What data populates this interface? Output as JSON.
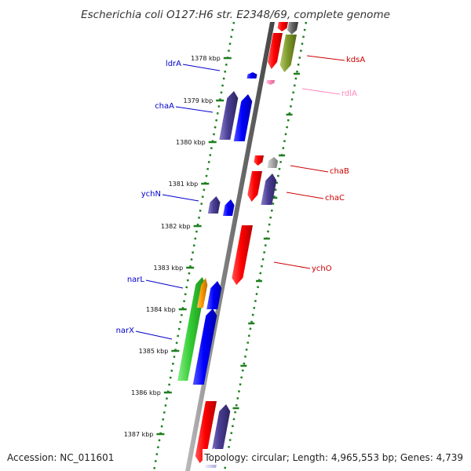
{
  "title": "Escherichia coli O127:H6 str. E2348/69, complete genome",
  "accession": "Accession: NC_011601",
  "summary": "Topology: circular; Length: 4,965,553 bp; Genes: 4,739",
  "colors": {
    "axis": "#888888",
    "tick": "#1f7f1f",
    "left_label": "#0000cc",
    "right_label": "#cc0000",
    "rna_label": "#ff88bb"
  },
  "ticks": [
    {
      "label": "1378 kbp",
      "value": 1378
    },
    {
      "label": "1379 kbp",
      "value": 1379
    },
    {
      "label": "1380 kbp",
      "value": 1380
    },
    {
      "label": "1381 kbp",
      "value": 1381
    },
    {
      "label": "1382 kbp",
      "value": 1382
    },
    {
      "label": "1383 kbp",
      "value": 1383
    },
    {
      "label": "1384 kbp",
      "value": 1384
    },
    {
      "label": "1385 kbp",
      "value": 1385
    },
    {
      "label": "1386 kbp",
      "value": 1386
    },
    {
      "label": "1387 kbp",
      "value": 1387
    }
  ],
  "gene_labels_left": [
    {
      "name": "ldrA",
      "color": "#0000cc"
    },
    {
      "name": "chaA",
      "color": "#0000cc"
    },
    {
      "name": "ychN",
      "color": "#0000cc"
    },
    {
      "name": "narL",
      "color": "#0000cc"
    },
    {
      "name": "narX",
      "color": "#0000cc"
    }
  ],
  "gene_labels_right": [
    {
      "name": "kdsA",
      "color": "#cc0000"
    },
    {
      "name": "rdlA",
      "color": "#ff88bb"
    },
    {
      "name": "chaB",
      "color": "#cc0000"
    },
    {
      "name": "chaC",
      "color": "#cc0000"
    },
    {
      "name": "ychO",
      "color": "#cc0000"
    }
  ]
}
